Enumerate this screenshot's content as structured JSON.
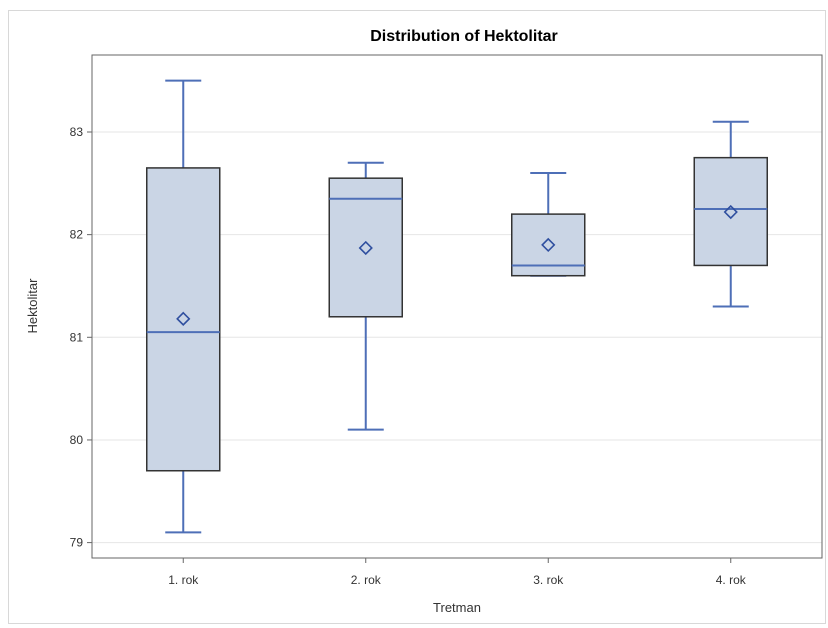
{
  "chart_data": {
    "type": "boxplot",
    "title": "Distribution of Hektolitar",
    "xlabel": "Tretman",
    "ylabel": "Hektolitar",
    "categories": [
      "1. rok",
      "2. rok",
      "3. rok",
      "4. rok"
    ],
    "y_ticks": [
      79,
      80,
      81,
      82,
      83
    ],
    "ylim": [
      78.85,
      83.75
    ],
    "grid": true,
    "boxes": [
      {
        "category": "1. rok",
        "whisker_low": 79.1,
        "q1": 79.7,
        "median": 81.05,
        "q3": 82.65,
        "whisker_high": 83.5,
        "mean": 81.18
      },
      {
        "category": "2. rok",
        "whisker_low": 80.1,
        "q1": 81.2,
        "median": 82.35,
        "q3": 82.55,
        "whisker_high": 82.7,
        "mean": 81.87
      },
      {
        "category": "3. rok",
        "whisker_low": 81.6,
        "q1": 81.6,
        "median": 81.7,
        "q3": 82.2,
        "whisker_high": 82.6,
        "mean": 81.9
      },
      {
        "category": "4. rok",
        "whisker_low": 81.3,
        "q1": 81.7,
        "median": 82.25,
        "q3": 82.75,
        "whisker_high": 83.1,
        "mean": 82.22
      }
    ],
    "colors": {
      "box_fill": "#cad5e5",
      "box_outline": "#333333",
      "whisker": "#4e6fb7",
      "median": "#4e6fb7",
      "mean_marker": "#2f4f9f",
      "grid": "#e6e6e6",
      "axis": "#666666"
    }
  }
}
